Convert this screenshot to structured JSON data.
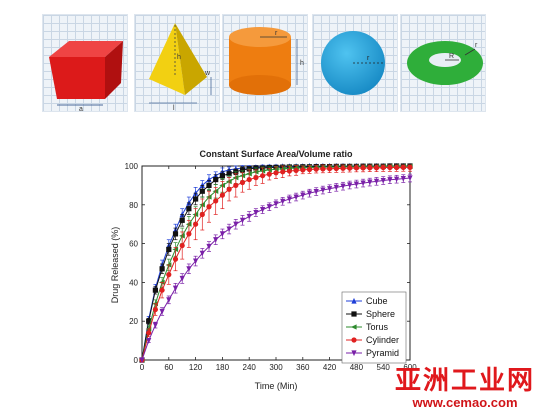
{
  "shapes": {
    "cube": {
      "label_a": "a"
    },
    "pyramid": {
      "label_h": "h",
      "label_w": "w",
      "label_l": "l"
    },
    "cylinder": {
      "label_r": "r",
      "label_h": "h"
    },
    "sphere": {
      "label_r": "r"
    },
    "torus": {
      "label_R": "R",
      "label_r": "r"
    }
  },
  "watermark": {
    "cn": "亚洲工业网",
    "url": "www.cemao.com"
  },
  "chart_data": {
    "type": "line",
    "title": "Constant Surface Area/Volume ratio",
    "xlabel": "Time (Min)",
    "ylabel": "Drug Released (%)",
    "xlim": [
      0,
      600
    ],
    "ylim": [
      0,
      100
    ],
    "xticks": [
      0,
      60,
      120,
      180,
      240,
      300,
      360,
      420,
      480,
      540,
      600
    ],
    "yticks": [
      0,
      20,
      40,
      60,
      80,
      100
    ],
    "legend_position": "bottom-right",
    "x": [
      0,
      15,
      30,
      45,
      60,
      75,
      90,
      105,
      120,
      135,
      150,
      165,
      180,
      195,
      210,
      225,
      240,
      255,
      270,
      285,
      300,
      315,
      330,
      345,
      360,
      375,
      390,
      405,
      420,
      435,
      450,
      465,
      480,
      495,
      510,
      525,
      540,
      555,
      570,
      585,
      600
    ],
    "series": [
      {
        "name": "Cube",
        "color": "#1f3fd8",
        "marker": "triangle-up",
        "values": [
          0,
          21,
          37,
          49,
          59,
          67,
          75,
          81,
          86,
          90,
          93,
          95,
          97,
          98,
          98.5,
          99,
          99,
          99.3,
          99.5,
          99.6,
          99.7,
          99.8,
          99.8,
          99.9,
          99.9,
          100,
          100,
          100,
          100,
          100,
          100,
          100,
          100,
          100,
          100,
          100,
          100,
          100,
          100,
          100,
          100
        ],
        "errors": [
          0,
          1.5,
          2,
          2.5,
          3,
          3,
          3,
          3,
          3,
          2.5,
          2.5,
          2,
          2,
          1.5,
          1.5,
          1.2,
          1.2,
          1,
          1,
          1,
          1,
          1,
          1,
          1,
          1,
          1,
          1,
          1,
          1,
          1,
          1,
          1,
          1,
          1,
          1,
          1,
          1,
          1,
          1,
          1,
          1
        ]
      },
      {
        "name": "Sphere",
        "color": "#111111",
        "marker": "square",
        "values": [
          0,
          20,
          36,
          47,
          57,
          65,
          72,
          78,
          83,
          87,
          90,
          93,
          95,
          96,
          97,
          98,
          98.5,
          99,
          99,
          99.2,
          99.3,
          99.4,
          99.5,
          99.5,
          99.6,
          99.6,
          99.7,
          99.7,
          99.7,
          99.8,
          99.8,
          99.8,
          99.8,
          99.9,
          99.9,
          99.9,
          99.9,
          100,
          100,
          100,
          100
        ],
        "errors": [
          0,
          1.5,
          2,
          2.5,
          3,
          3,
          3,
          3,
          3,
          3,
          2.5,
          2.5,
          2,
          2,
          1.5,
          1.5,
          1.2,
          1,
          1,
          1,
          1,
          1,
          1,
          1,
          1,
          1,
          1,
          1,
          1,
          1,
          1,
          1,
          1,
          1,
          1,
          1,
          1,
          1,
          1,
          1,
          1
        ]
      },
      {
        "name": "Torus",
        "color": "#2e8b2e",
        "marker": "triangle-left",
        "values": [
          0,
          16,
          29,
          40,
          49,
          57,
          64,
          70,
          75,
          80,
          84,
          87,
          90,
          92,
          94,
          95,
          96,
          97,
          97.5,
          98,
          98.3,
          98.6,
          98.8,
          99,
          99,
          99.2,
          99.3,
          99.4,
          99.4,
          99.5,
          99.5,
          99.6,
          99.6,
          99.7,
          99.7,
          99.7,
          99.8,
          99.8,
          99.8,
          99.8,
          99.8
        ],
        "errors": [
          0,
          1.5,
          2,
          2.5,
          3,
          3.5,
          4,
          4,
          4,
          4,
          4,
          3.5,
          3.5,
          3,
          3,
          2.5,
          2.5,
          2,
          2,
          1.5,
          1.5,
          1.5,
          1.5,
          1.2,
          1.2,
          1.2,
          1,
          1,
          1,
          1,
          1,
          1,
          1,
          1,
          1,
          1,
          1,
          1,
          1,
          1,
          1
        ]
      },
      {
        "name": "Cylinder",
        "color": "#e02020",
        "marker": "circle",
        "values": [
          0,
          14,
          26,
          36,
          44,
          52,
          59,
          65,
          70,
          75,
          79,
          82,
          85,
          88,
          90,
          91.5,
          93,
          94,
          95,
          95.8,
          96.5,
          97,
          97.4,
          97.7,
          98,
          98.2,
          98.4,
          98.5,
          98.6,
          98.7,
          98.8,
          98.9,
          99,
          99,
          99.1,
          99.1,
          99.2,
          99.2,
          99.2,
          99.3,
          99.3
        ],
        "errors": [
          0,
          2,
          3,
          4,
          5,
          6,
          7,
          7,
          8,
          8,
          8,
          7,
          7,
          6,
          6,
          5,
          5,
          4,
          4,
          3,
          3,
          3,
          2.5,
          2.5,
          2,
          2,
          2,
          2,
          2,
          2,
          2,
          2,
          2,
          2,
          2,
          2,
          2,
          2,
          2,
          2,
          2
        ]
      },
      {
        "name": "Pyramid",
        "color": "#7a20a8",
        "marker": "triangle-down",
        "values": [
          0,
          10,
          18,
          25,
          31,
          37,
          42,
          47,
          51,
          55,
          58.5,
          62,
          65,
          67.5,
          70,
          72,
          74,
          76,
          77.5,
          79,
          80.5,
          81.8,
          83,
          84,
          85,
          86,
          86.8,
          87.6,
          88.3,
          89,
          89.6,
          90.2,
          90.7,
          91.2,
          91.7,
          92.1,
          92.5,
          92.9,
          93.2,
          93.5,
          93.8
        ],
        "errors": [
          0,
          1,
          1.5,
          2,
          2,
          2.5,
          2.5,
          2.5,
          2.5,
          2.5,
          2.5,
          2.5,
          2.5,
          2.5,
          2.5,
          2.5,
          2.5,
          2,
          2,
          2,
          2,
          2,
          2,
          2,
          2,
          2,
          2,
          2,
          2,
          2,
          2,
          2,
          2,
          2,
          2,
          2,
          2,
          2,
          2,
          2,
          2
        ]
      }
    ]
  }
}
